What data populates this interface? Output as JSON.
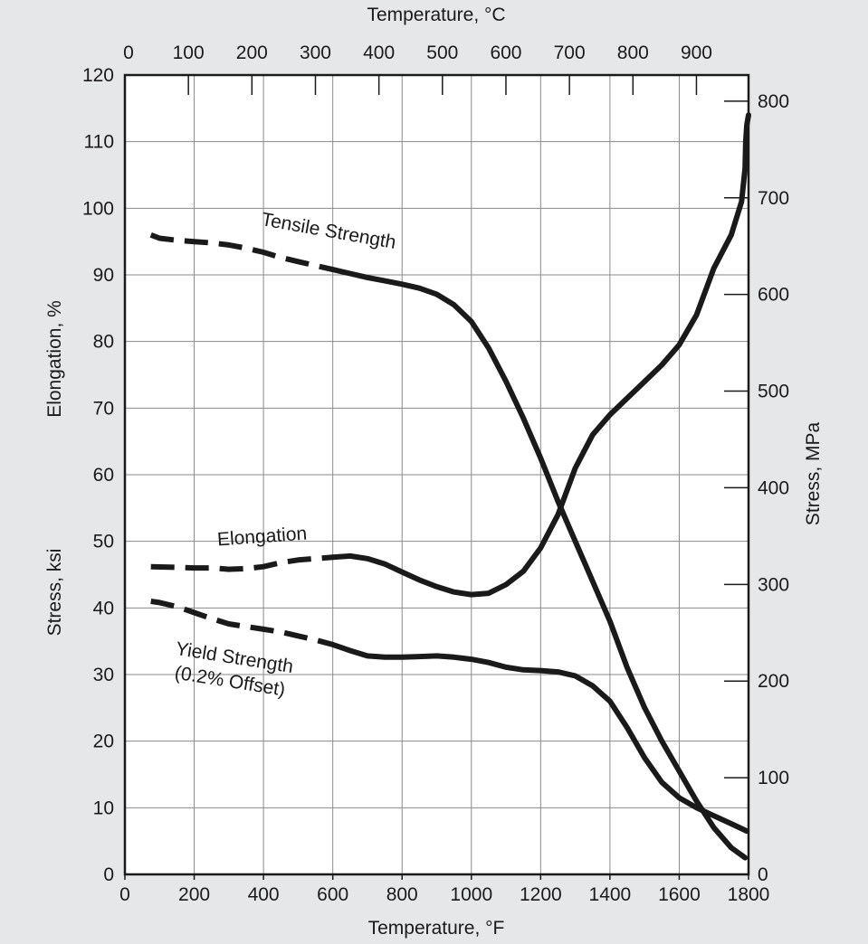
{
  "chart_data": {
    "type": "line",
    "background_color": "#e6e7e8",
    "plot_color": "#ffffff",
    "line_color": "#1a1a1a",
    "grid": true,
    "axes": {
      "bottom": {
        "label": "Temperature, °F",
        "range": [
          0,
          1800
        ],
        "ticks": [
          0,
          200,
          400,
          600,
          800,
          1000,
          1200,
          1400,
          1600,
          1800
        ]
      },
      "top": {
        "label": "Temperature, °C",
        "range": [
          0,
          982
        ],
        "ticks": [
          0,
          100,
          200,
          300,
          400,
          500,
          600,
          700,
          800,
          900
        ]
      },
      "left": {
        "labels": [
          "Stress, ksi",
          "Elongation, %"
        ],
        "range": [
          0,
          120
        ],
        "ticks": [
          0,
          10,
          20,
          30,
          40,
          50,
          60,
          70,
          80,
          90,
          100,
          110,
          120
        ]
      },
      "right": {
        "label": "Stress, MPa",
        "range": [
          0,
          827
        ],
        "ticks": [
          0,
          100,
          200,
          300,
          400,
          500,
          600,
          700,
          800
        ]
      }
    },
    "series": [
      {
        "name": "Tensile Strength",
        "dashed_until_x": 600,
        "label_rotation": 10,
        "points": [
          [
            75,
            96
          ],
          [
            100,
            95.5
          ],
          [
            150,
            95.2
          ],
          [
            200,
            95
          ],
          [
            250,
            94.8
          ],
          [
            300,
            94.5
          ],
          [
            350,
            94
          ],
          [
            400,
            93.4
          ],
          [
            450,
            92.6
          ],
          [
            500,
            92
          ],
          [
            550,
            91.4
          ],
          [
            600,
            90.8
          ],
          [
            650,
            90.2
          ],
          [
            700,
            89.6
          ],
          [
            750,
            89.1
          ],
          [
            800,
            88.6
          ],
          [
            850,
            88
          ],
          [
            900,
            87.1
          ],
          [
            950,
            85.5
          ],
          [
            1000,
            83
          ],
          [
            1050,
            79
          ],
          [
            1100,
            74
          ],
          [
            1150,
            68.5
          ],
          [
            1200,
            62.5
          ],
          [
            1250,
            56
          ],
          [
            1300,
            50
          ],
          [
            1350,
            44
          ],
          [
            1400,
            38
          ],
          [
            1450,
            31
          ],
          [
            1500,
            25
          ],
          [
            1550,
            20
          ],
          [
            1600,
            15.5
          ],
          [
            1650,
            11
          ],
          [
            1700,
            7
          ],
          [
            1750,
            4
          ],
          [
            1790,
            2.5
          ]
        ]
      },
      {
        "name": "Elongation",
        "dashed_until_x": 600,
        "label_rotation": -4,
        "points": [
          [
            75,
            46.2
          ],
          [
            150,
            46.1
          ],
          [
            200,
            46
          ],
          [
            250,
            46
          ],
          [
            300,
            45.8
          ],
          [
            350,
            45.9
          ],
          [
            400,
            46.2
          ],
          [
            450,
            46.8
          ],
          [
            500,
            47.2
          ],
          [
            550,
            47.4
          ],
          [
            600,
            47.6
          ],
          [
            650,
            47.8
          ],
          [
            700,
            47.4
          ],
          [
            750,
            46.6
          ],
          [
            800,
            45.4
          ],
          [
            850,
            44.2
          ],
          [
            900,
            43.2
          ],
          [
            950,
            42.4
          ],
          [
            1000,
            42
          ],
          [
            1050,
            42.2
          ],
          [
            1100,
            43.5
          ],
          [
            1150,
            45.5
          ],
          [
            1200,
            49
          ],
          [
            1250,
            54
          ],
          [
            1300,
            61
          ],
          [
            1350,
            66
          ],
          [
            1400,
            69
          ],
          [
            1450,
            71.5
          ],
          [
            1500,
            74
          ],
          [
            1550,
            76.5
          ],
          [
            1600,
            79.5
          ],
          [
            1650,
            84
          ],
          [
            1700,
            91
          ],
          [
            1750,
            96
          ],
          [
            1780,
            101
          ],
          [
            1790,
            106
          ],
          [
            1792,
            110
          ],
          [
            1795,
            112.5
          ],
          [
            1800,
            114
          ]
        ]
      },
      {
        "name": "Yield Strength",
        "label_line2": "(0.2% Offset)",
        "dashed_until_x": 600,
        "label_rotation": 9,
        "points": [
          [
            75,
            41
          ],
          [
            100,
            40.8
          ],
          [
            150,
            40.2
          ],
          [
            200,
            39.3
          ],
          [
            250,
            38.4
          ],
          [
            300,
            37.6
          ],
          [
            350,
            37.2
          ],
          [
            400,
            36.8
          ],
          [
            450,
            36.4
          ],
          [
            500,
            35.8
          ],
          [
            550,
            35.2
          ],
          [
            600,
            34.5
          ],
          [
            650,
            33.6
          ],
          [
            700,
            32.8
          ],
          [
            750,
            32.6
          ],
          [
            800,
            32.6
          ],
          [
            850,
            32.7
          ],
          [
            900,
            32.8
          ],
          [
            950,
            32.6
          ],
          [
            1000,
            32.3
          ],
          [
            1050,
            31.8
          ],
          [
            1100,
            31.1
          ],
          [
            1150,
            30.7
          ],
          [
            1200,
            30.6
          ],
          [
            1250,
            30.4
          ],
          [
            1300,
            29.8
          ],
          [
            1350,
            28.3
          ],
          [
            1400,
            26
          ],
          [
            1450,
            22
          ],
          [
            1500,
            17.5
          ],
          [
            1550,
            13.8
          ],
          [
            1600,
            11.5
          ],
          [
            1650,
            10
          ],
          [
            1700,
            8.8
          ],
          [
            1750,
            7.6
          ],
          [
            1795,
            6.5
          ]
        ]
      }
    ]
  }
}
